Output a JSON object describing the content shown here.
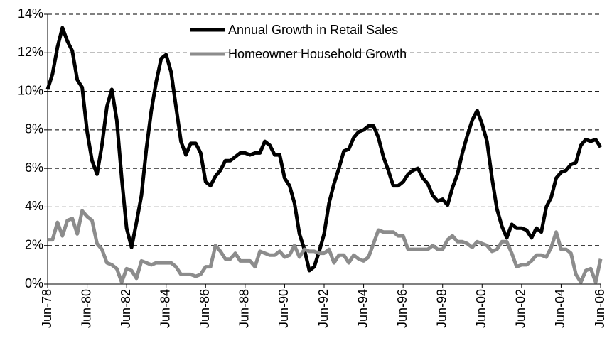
{
  "chart_data": {
    "type": "line",
    "categories": [
      "Jun-78",
      null,
      null,
      null,
      null,
      null,
      null,
      null,
      "Jun-80",
      null,
      null,
      null,
      null,
      null,
      null,
      null,
      "Jun-82",
      null,
      null,
      null,
      null,
      null,
      null,
      null,
      "Jun-84",
      null,
      null,
      null,
      null,
      null,
      null,
      null,
      "Jun-86",
      null,
      null,
      null,
      null,
      null,
      null,
      null,
      "Jun-88",
      null,
      null,
      null,
      null,
      null,
      null,
      null,
      "Jun-90",
      null,
      null,
      null,
      null,
      null,
      null,
      null,
      "Jun-92",
      null,
      null,
      null,
      null,
      null,
      null,
      null,
      "Jun-94",
      null,
      null,
      null,
      null,
      null,
      null,
      null,
      "Jun-96",
      null,
      null,
      null,
      null,
      null,
      null,
      null,
      "Jun-98",
      null,
      null,
      null,
      null,
      null,
      null,
      null,
      "Jun-00",
      null,
      null,
      null,
      null,
      null,
      null,
      null,
      "Jun-02",
      null,
      null,
      null,
      null,
      null,
      null,
      null,
      "Jun-04",
      null,
      null,
      null,
      null,
      null,
      null,
      null,
      "Jun-06"
    ],
    "series": [
      {
        "name": "Annual Growth in Retail Sales",
        "color": "#000000",
        "values": [
          10.1,
          10.9,
          12.3,
          13.3,
          12.6,
          12.1,
          10.6,
          10.2,
          7.9,
          6.4,
          5.7,
          7.2,
          9.2,
          10.1,
          8.5,
          5.5,
          2.9,
          1.9,
          3.2,
          4.6,
          7.0,
          9.0,
          10.5,
          11.7,
          11.9,
          11.0,
          9.2,
          7.4,
          6.7,
          7.3,
          7.3,
          6.8,
          5.3,
          5.1,
          5.6,
          5.9,
          6.4,
          6.4,
          6.6,
          6.8,
          6.8,
          6.7,
          6.8,
          6.8,
          7.4,
          7.2,
          6.7,
          6.7,
          5.5,
          5.1,
          4.2,
          2.6,
          1.8,
          0.7,
          0.9,
          1.7,
          2.6,
          4.2,
          5.2,
          6.0,
          6.9,
          7.0,
          7.6,
          7.9,
          8.0,
          8.2,
          8.2,
          7.6,
          6.6,
          5.9,
          5.1,
          5.1,
          5.3,
          5.7,
          5.9,
          6.0,
          5.5,
          5.2,
          4.6,
          4.3,
          4.4,
          4.1,
          5.0,
          5.7,
          6.8,
          7.7,
          8.5,
          9.0,
          8.3,
          7.4,
          5.5,
          3.9,
          3.0,
          2.4,
          3.1,
          2.9,
          2.9,
          2.8,
          2.4,
          2.9,
          2.7,
          4.0,
          4.5,
          5.5,
          5.8,
          5.9,
          6.2,
          6.3,
          7.2,
          7.5,
          7.4,
          7.5,
          7.1
        ]
      },
      {
        "name": "Homeowner Household Growth",
        "color": "#8c8c8c",
        "values": [
          2.3,
          2.3,
          3.2,
          2.5,
          3.3,
          3.4,
          2.6,
          3.8,
          3.5,
          3.3,
          2.1,
          1.8,
          1.1,
          1.0,
          0.8,
          0.1,
          0.8,
          0.7,
          0.3,
          1.2,
          1.1,
          1.0,
          1.1,
          1.1,
          1.1,
          1.1,
          0.9,
          0.5,
          0.5,
          0.5,
          0.4,
          0.5,
          0.9,
          0.9,
          2.0,
          1.7,
          1.3,
          1.3,
          1.6,
          1.2,
          1.2,
          1.2,
          0.9,
          1.7,
          1.6,
          1.5,
          1.5,
          1.7,
          1.4,
          1.5,
          2.0,
          1.4,
          1.8,
          1.7,
          1.7,
          1.6,
          1.6,
          1.8,
          1.1,
          1.5,
          1.5,
          1.1,
          1.5,
          1.3,
          1.2,
          1.4,
          2.1,
          2.8,
          2.7,
          2.7,
          2.7,
          2.5,
          2.5,
          1.8,
          1.8,
          1.8,
          1.8,
          1.8,
          2.0,
          1.8,
          1.8,
          2.3,
          2.5,
          2.2,
          2.2,
          2.1,
          1.9,
          2.2,
          2.1,
          2.0,
          1.7,
          1.8,
          2.2,
          2.2,
          1.6,
          0.9,
          1.0,
          1.0,
          1.2,
          1.5,
          1.5,
          1.4,
          1.9,
          2.7,
          1.8,
          1.8,
          1.6,
          0.5,
          0.1,
          0.7,
          0.8,
          0.1,
          1.3
        ]
      }
    ],
    "ylim": [
      0,
      14
    ],
    "yticks": [
      {
        "value": 0,
        "label": "0%"
      },
      {
        "value": 2,
        "label": "2%"
      },
      {
        "value": 4,
        "label": "4%"
      },
      {
        "value": 6,
        "label": "6%"
      },
      {
        "value": 8,
        "label": "8%"
      },
      {
        "value": 10,
        "label": "10%"
      },
      {
        "value": 12,
        "label": "12%"
      },
      {
        "value": 14,
        "label": "14%"
      }
    ],
    "grid": true,
    "legend": "top"
  }
}
